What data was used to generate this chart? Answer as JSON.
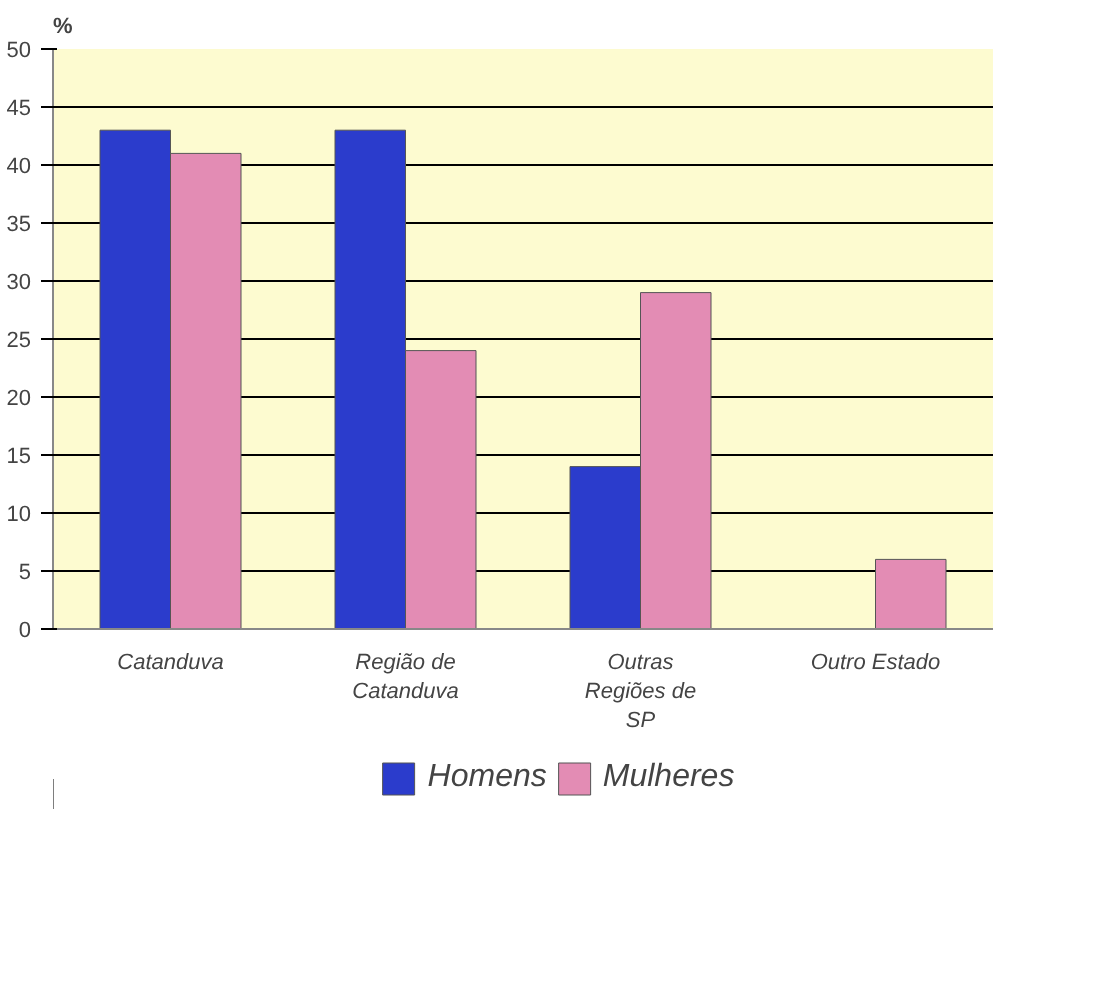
{
  "chart_data": {
    "type": "bar",
    "ylabel": "%",
    "categories": [
      "Catanduva",
      "Região de Catanduva",
      "Outras Regiões de SP",
      "Outro Estado"
    ],
    "series": [
      {
        "name": "Homens",
        "color": "#2b3ccc",
        "values": [
          43,
          43,
          14,
          null
        ]
      },
      {
        "name": "Mulheres",
        "color": "#e38cb4",
        "values": [
          41,
          24,
          29,
          6
        ]
      }
    ],
    "ylim": [
      0,
      50
    ],
    "yticks": [
      0,
      5,
      10,
      15,
      20,
      25,
      30,
      35,
      40,
      45,
      50
    ],
    "grid": "y",
    "legend": "bottom"
  }
}
